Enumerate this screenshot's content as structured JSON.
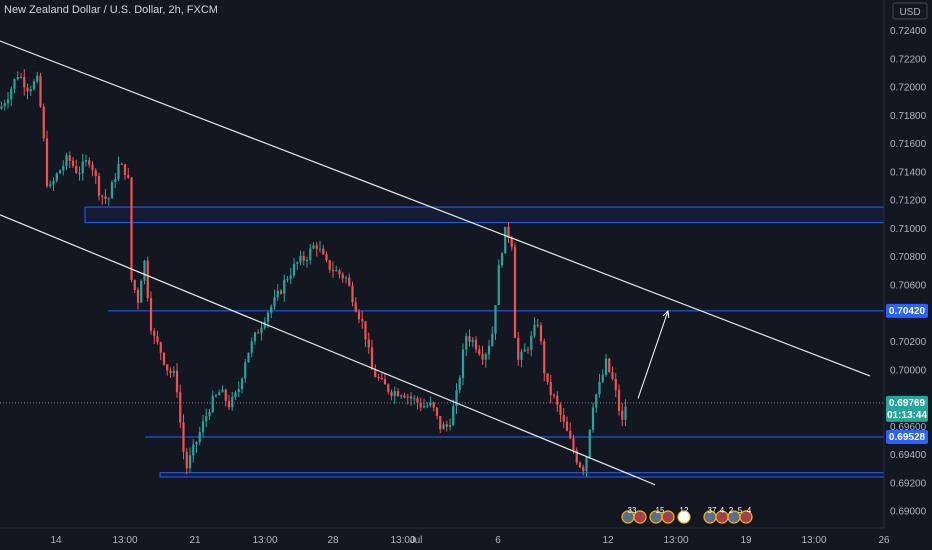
{
  "header": {
    "title": "New Zealand Dollar / U.S. Dollar, 2h, FXCM",
    "currency": "USD"
  },
  "colors": {
    "background": "#131722",
    "up": "#26a69a",
    "down": "#ef5350",
    "level_line": "#2962ff",
    "channel_line": "#ffffff",
    "price_tag": "#26a69a",
    "level_tag": "#2962ff"
  },
  "chart_data": {
    "type": "candlestick",
    "symbol": "NZDUSD",
    "timeframe": "2h",
    "ylim": [
      0.6893,
      0.7256
    ],
    "xlim": [
      0,
      870
    ],
    "y_ticks": [
      "0.72400",
      "0.72200",
      "0.72000",
      "0.71800",
      "0.71600",
      "0.71400",
      "0.71200",
      "0.71000",
      "0.70800",
      "0.70600",
      "0.70200",
      "0.70000",
      "0.69600",
      "0.69400",
      "0.69200",
      "0.69000"
    ],
    "x_ticks": [
      {
        "label": "14",
        "x": 56
      },
      {
        "label": "13:00",
        "x": 125
      },
      {
        "label": "21",
        "x": 195
      },
      {
        "label": "13:00",
        "x": 265
      },
      {
        "label": "28",
        "x": 333
      },
      {
        "label": "13:00",
        "x": 403
      },
      {
        "label": "Jul",
        "x": 416
      },
      {
        "label": "6",
        "x": 498
      },
      {
        "label": "12",
        "x": 608
      },
      {
        "label": "13:00",
        "x": 676
      },
      {
        "label": "19",
        "x": 746
      },
      {
        "label": "13:00",
        "x": 814
      },
      {
        "label": "26",
        "x": 884
      }
    ],
    "anchors": [
      [
        0,
        0.7185
      ],
      [
        8,
        0.7195
      ],
      [
        18,
        0.721
      ],
      [
        28,
        0.72
      ],
      [
        38,
        0.7205
      ],
      [
        44,
        0.716
      ],
      [
        48,
        0.7125
      ],
      [
        58,
        0.714
      ],
      [
        68,
        0.715
      ],
      [
        78,
        0.714
      ],
      [
        90,
        0.715
      ],
      [
        100,
        0.7125
      ],
      [
        108,
        0.712
      ],
      [
        118,
        0.7145
      ],
      [
        128,
        0.714
      ],
      [
        131,
        0.7065
      ],
      [
        138,
        0.705
      ],
      [
        144,
        0.708
      ],
      [
        152,
        0.7025
      ],
      [
        160,
        0.7015
      ],
      [
        168,
        0.7
      ],
      [
        176,
        0.6995
      ],
      [
        182,
        0.695
      ],
      [
        186,
        0.693
      ],
      [
        194,
        0.6945
      ],
      [
        202,
        0.696
      ],
      [
        210,
        0.6975
      ],
      [
        220,
        0.6985
      ],
      [
        230,
        0.6975
      ],
      [
        238,
        0.6985
      ],
      [
        246,
        0.701
      ],
      [
        256,
        0.7025
      ],
      [
        266,
        0.704
      ],
      [
        276,
        0.705
      ],
      [
        286,
        0.7065
      ],
      [
        296,
        0.7075
      ],
      [
        306,
        0.708
      ],
      [
        316,
        0.709
      ],
      [
        326,
        0.7075
      ],
      [
        336,
        0.707
      ],
      [
        346,
        0.7065
      ],
      [
        356,
        0.7045
      ],
      [
        364,
        0.703
      ],
      [
        372,
        0.7
      ],
      [
        382,
        0.699
      ],
      [
        392,
        0.6985
      ],
      [
        402,
        0.6985
      ],
      [
        412,
        0.698
      ],
      [
        422,
        0.6975
      ],
      [
        432,
        0.6975
      ],
      [
        440,
        0.696
      ],
      [
        448,
        0.696
      ],
      [
        456,
        0.698
      ],
      [
        466,
        0.7025
      ],
      [
        474,
        0.702
      ],
      [
        484,
        0.701
      ],
      [
        492,
        0.7025
      ],
      [
        500,
        0.708
      ],
      [
        506,
        0.71
      ],
      [
        512,
        0.709
      ],
      [
        516,
        0.7005
      ],
      [
        522,
        0.701
      ],
      [
        530,
        0.702
      ],
      [
        538,
        0.7035
      ],
      [
        546,
        0.699
      ],
      [
        554,
        0.698
      ],
      [
        562,
        0.6965
      ],
      [
        570,
        0.695
      ],
      [
        578,
        0.6935
      ],
      [
        585,
        0.693
      ],
      [
        592,
        0.6975
      ],
      [
        600,
        0.699
      ],
      [
        606,
        0.7005
      ],
      [
        614,
        0.699
      ],
      [
        622,
        0.6962
      ],
      [
        626,
        0.6977
      ]
    ],
    "levels": [
      {
        "label": "0.70420",
        "value": 0.7042,
        "x_start": 108
      },
      {
        "label": "0.69528",
        "value": 0.69528,
        "x_start": 145
      }
    ],
    "zones": [
      {
        "top": 0.71155,
        "bottom": 0.71045,
        "x_start": 85
      },
      {
        "top": 0.69275,
        "bottom": 0.69245,
        "x_start": 160
      }
    ],
    "current_price": {
      "value": 0.69769,
      "label": "0.69769",
      "countdown": "01:13:44"
    },
    "channel": {
      "upper": [
        [
          0,
          0.7233
        ],
        [
          870,
          0.6996
        ]
      ],
      "lower": [
        [
          0,
          0.711
        ],
        [
          655,
          0.6919
        ]
      ]
    },
    "projection_arrow": [
      [
        638,
        0.698
      ],
      [
        668,
        0.7042
      ]
    ],
    "event_badges": [
      "33",
      "15",
      "12",
      "37",
      "4",
      "2",
      "5",
      "4"
    ]
  }
}
